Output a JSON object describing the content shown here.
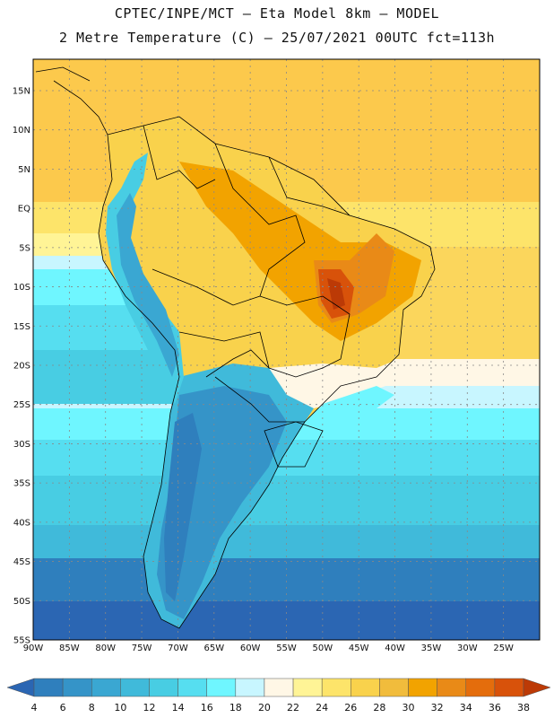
{
  "header": {
    "title_line1": "CPTEC/INPE/MCT –  Eta Model 8km – MODEL",
    "title_line2": "2 Metre Temperature (C) – 25/07/2021 00UTC fct=113h"
  },
  "map": {
    "lat_ticks": [
      "15N",
      "10N",
      "5N",
      "EQ",
      "5S",
      "10S",
      "15S",
      "20S",
      "25S",
      "30S",
      "35S",
      "40S",
      "45S",
      "50S",
      "55S"
    ],
    "lat_values": [
      15,
      10,
      5,
      0,
      -5,
      -10,
      -15,
      -20,
      -25,
      -30,
      -35,
      -40,
      -45,
      -50,
      -55
    ],
    "lon_ticks": [
      "90W",
      "85W",
      "80W",
      "75W",
      "70W",
      "65W",
      "60W",
      "55W",
      "50W",
      "45W",
      "40W",
      "35W",
      "30W",
      "25W"
    ],
    "lon_values": [
      -90,
      -85,
      -80,
      -75,
      -70,
      -65,
      -60,
      -55,
      -50,
      -45,
      -40,
      -35,
      -30,
      -25
    ],
    "extent": {
      "lon_min": -90,
      "lon_max": -20,
      "lat_min": -55,
      "lat_max": 19
    },
    "colors": {
      "ocean_land_bg": "#fbd65c",
      "coast": "#000000",
      "grid": "#888888"
    }
  },
  "colorbar": {
    "labels": [
      "4",
      "6",
      "8",
      "10",
      "12",
      "14",
      "16",
      "18",
      "20",
      "22",
      "24",
      "26",
      "28",
      "30",
      "32",
      "34",
      "36",
      "38"
    ],
    "colors": [
      "#2b66b3",
      "#2f7fbd",
      "#3594c8",
      "#3aa7d2",
      "#40bada",
      "#48cde3",
      "#56def0",
      "#6ff6ff",
      "#c8f6ff",
      "#fff7e6",
      "#fff496",
      "#fde46a",
      "#f9d24c",
      "#f1bc3c",
      "#f2a300",
      "#e98a17",
      "#e46d0c",
      "#d8520a",
      "#bc3a06"
    ]
  }
}
